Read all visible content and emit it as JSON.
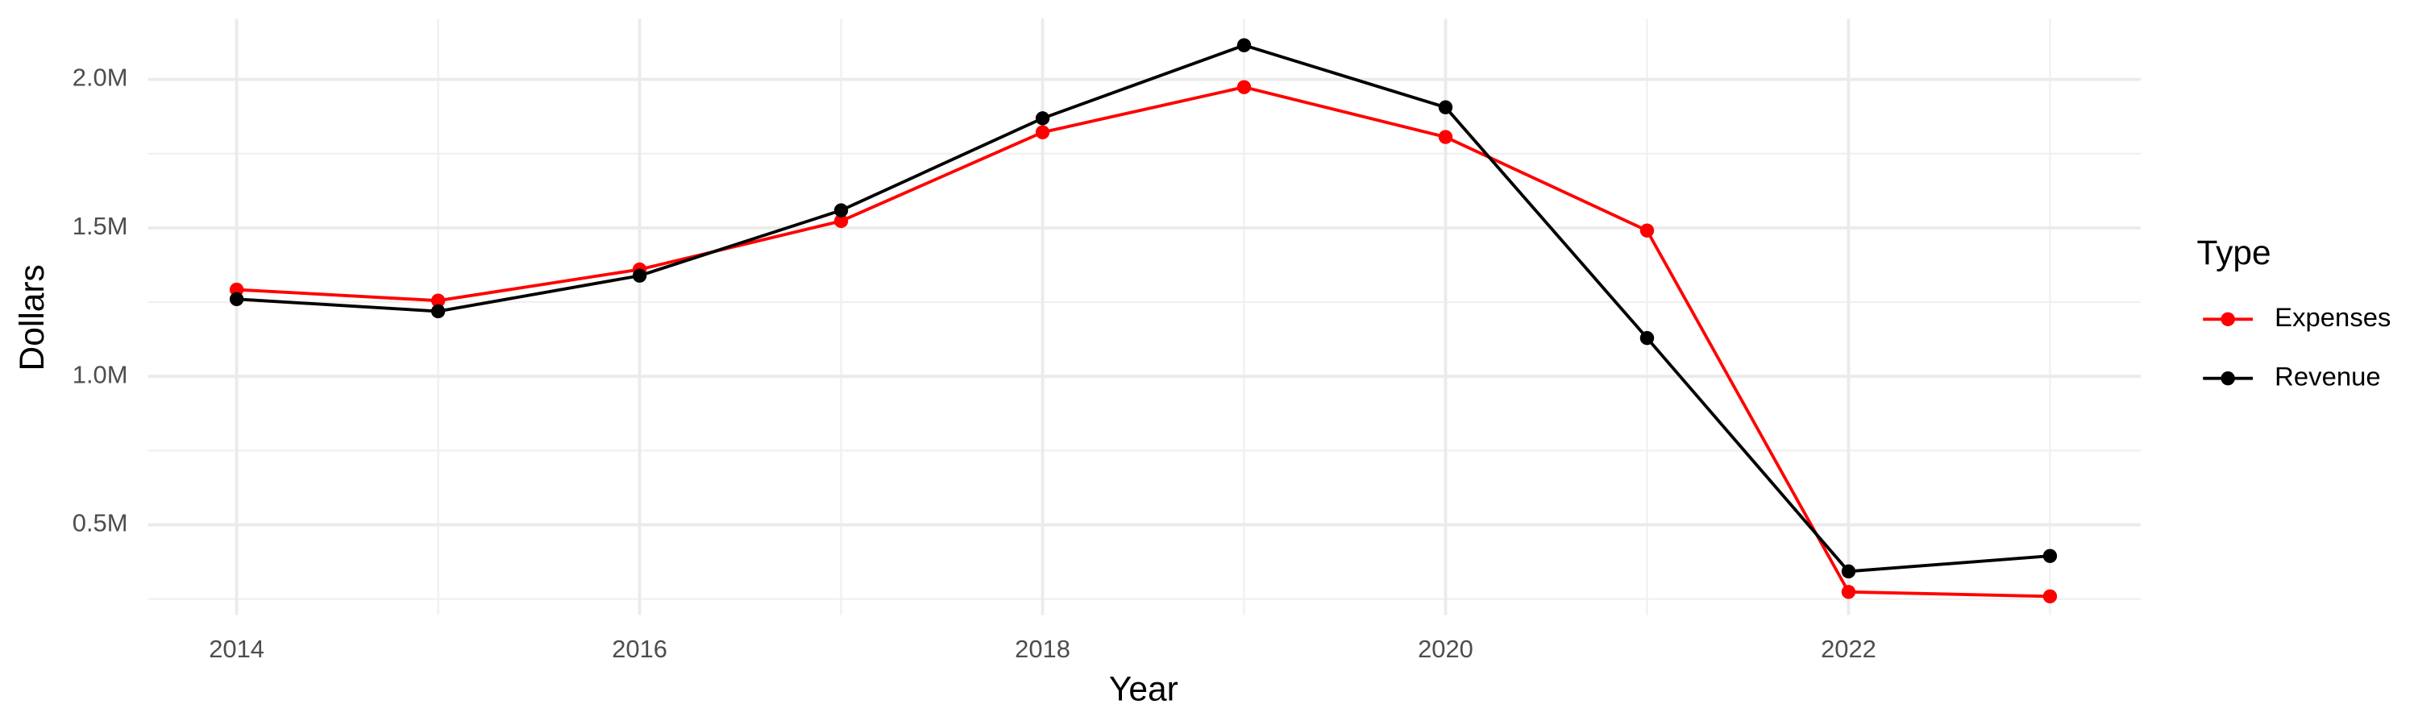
{
  "chart_data": {
    "type": "line",
    "x_label": "Year",
    "y_label": "Dollars",
    "legend_title": "Type",
    "x": [
      2014,
      2015,
      2016,
      2017,
      2018,
      2019,
      2020,
      2021,
      2022,
      2023
    ],
    "series": [
      {
        "name": "Expenses",
        "color": "#ff0000",
        "values": [
          1292000,
          1255000,
          1360000,
          1523000,
          1822000,
          1974000,
          1806000,
          1491000,
          274000,
          259000
        ]
      },
      {
        "name": "Revenue",
        "color": "#000000",
        "values": [
          1260000,
          1219000,
          1339000,
          1559000,
          1869000,
          2115000,
          1906000,
          1129000,
          343000,
          395000
        ]
      }
    ],
    "xlim": [
      2013.56,
      2023.45
    ],
    "xticks": [
      2014,
      2016,
      2018,
      2020,
      2022
    ],
    "ylim": [
      196000,
      2204500
    ],
    "yticks": [
      {
        "value": 500000,
        "label": "0.5M"
      },
      {
        "value": 1000000,
        "label": "1.0M"
      },
      {
        "value": 1500000,
        "label": "1.5M"
      },
      {
        "value": 2000000,
        "label": "2.0M"
      }
    ],
    "grid": true,
    "legend_position": "right"
  }
}
